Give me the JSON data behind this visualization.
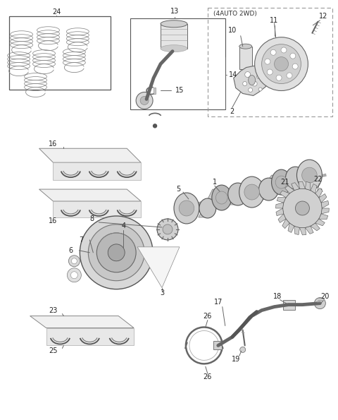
{
  "bg_color": "#ffffff",
  "fig_w": 4.8,
  "fig_h": 5.95,
  "dpi": 100,
  "lc": "#666666",
  "fs": 7.0
}
